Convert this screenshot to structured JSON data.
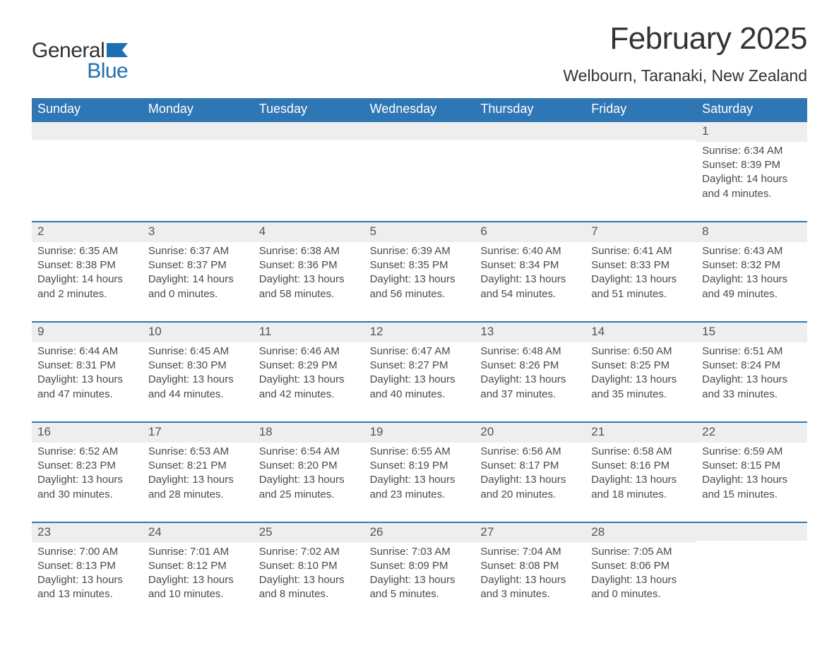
{
  "logo": {
    "part1": "General",
    "part2": "Blue",
    "icon_color": "#1f6fb2"
  },
  "title": "February 2025",
  "location": "Welbourn, Taranaki, New Zealand",
  "colors": {
    "header_bg": "#2f76b5",
    "header_text": "#ffffff",
    "daynum_bg": "#eeeeee",
    "row_border": "#2f76b5",
    "body_text": "#4a4a4a",
    "logo_blue": "#1f6fb2",
    "background": "#ffffff"
  },
  "layout": {
    "columns": 7,
    "rows": 5,
    "cell_font_size": 15,
    "header_font_size": 18,
    "title_font_size": 44,
    "location_font_size": 23
  },
  "weekdays": [
    "Sunday",
    "Monday",
    "Tuesday",
    "Wednesday",
    "Thursday",
    "Friday",
    "Saturday"
  ],
  "weeks": [
    [
      null,
      null,
      null,
      null,
      null,
      null,
      {
        "day": "1",
        "sunrise": "Sunrise: 6:34 AM",
        "sunset": "Sunset: 8:39 PM",
        "daylight": "Daylight: 14 hours and 4 minutes."
      }
    ],
    [
      {
        "day": "2",
        "sunrise": "Sunrise: 6:35 AM",
        "sunset": "Sunset: 8:38 PM",
        "daylight": "Daylight: 14 hours and 2 minutes."
      },
      {
        "day": "3",
        "sunrise": "Sunrise: 6:37 AM",
        "sunset": "Sunset: 8:37 PM",
        "daylight": "Daylight: 14 hours and 0 minutes."
      },
      {
        "day": "4",
        "sunrise": "Sunrise: 6:38 AM",
        "sunset": "Sunset: 8:36 PM",
        "daylight": "Daylight: 13 hours and 58 minutes."
      },
      {
        "day": "5",
        "sunrise": "Sunrise: 6:39 AM",
        "sunset": "Sunset: 8:35 PM",
        "daylight": "Daylight: 13 hours and 56 minutes."
      },
      {
        "day": "6",
        "sunrise": "Sunrise: 6:40 AM",
        "sunset": "Sunset: 8:34 PM",
        "daylight": "Daylight: 13 hours and 54 minutes."
      },
      {
        "day": "7",
        "sunrise": "Sunrise: 6:41 AM",
        "sunset": "Sunset: 8:33 PM",
        "daylight": "Daylight: 13 hours and 51 minutes."
      },
      {
        "day": "8",
        "sunrise": "Sunrise: 6:43 AM",
        "sunset": "Sunset: 8:32 PM",
        "daylight": "Daylight: 13 hours and 49 minutes."
      }
    ],
    [
      {
        "day": "9",
        "sunrise": "Sunrise: 6:44 AM",
        "sunset": "Sunset: 8:31 PM",
        "daylight": "Daylight: 13 hours and 47 minutes."
      },
      {
        "day": "10",
        "sunrise": "Sunrise: 6:45 AM",
        "sunset": "Sunset: 8:30 PM",
        "daylight": "Daylight: 13 hours and 44 minutes."
      },
      {
        "day": "11",
        "sunrise": "Sunrise: 6:46 AM",
        "sunset": "Sunset: 8:29 PM",
        "daylight": "Daylight: 13 hours and 42 minutes."
      },
      {
        "day": "12",
        "sunrise": "Sunrise: 6:47 AM",
        "sunset": "Sunset: 8:27 PM",
        "daylight": "Daylight: 13 hours and 40 minutes."
      },
      {
        "day": "13",
        "sunrise": "Sunrise: 6:48 AM",
        "sunset": "Sunset: 8:26 PM",
        "daylight": "Daylight: 13 hours and 37 minutes."
      },
      {
        "day": "14",
        "sunrise": "Sunrise: 6:50 AM",
        "sunset": "Sunset: 8:25 PM",
        "daylight": "Daylight: 13 hours and 35 minutes."
      },
      {
        "day": "15",
        "sunrise": "Sunrise: 6:51 AM",
        "sunset": "Sunset: 8:24 PM",
        "daylight": "Daylight: 13 hours and 33 minutes."
      }
    ],
    [
      {
        "day": "16",
        "sunrise": "Sunrise: 6:52 AM",
        "sunset": "Sunset: 8:23 PM",
        "daylight": "Daylight: 13 hours and 30 minutes."
      },
      {
        "day": "17",
        "sunrise": "Sunrise: 6:53 AM",
        "sunset": "Sunset: 8:21 PM",
        "daylight": "Daylight: 13 hours and 28 minutes."
      },
      {
        "day": "18",
        "sunrise": "Sunrise: 6:54 AM",
        "sunset": "Sunset: 8:20 PM",
        "daylight": "Daylight: 13 hours and 25 minutes."
      },
      {
        "day": "19",
        "sunrise": "Sunrise: 6:55 AM",
        "sunset": "Sunset: 8:19 PM",
        "daylight": "Daylight: 13 hours and 23 minutes."
      },
      {
        "day": "20",
        "sunrise": "Sunrise: 6:56 AM",
        "sunset": "Sunset: 8:17 PM",
        "daylight": "Daylight: 13 hours and 20 minutes."
      },
      {
        "day": "21",
        "sunrise": "Sunrise: 6:58 AM",
        "sunset": "Sunset: 8:16 PM",
        "daylight": "Daylight: 13 hours and 18 minutes."
      },
      {
        "day": "22",
        "sunrise": "Sunrise: 6:59 AM",
        "sunset": "Sunset: 8:15 PM",
        "daylight": "Daylight: 13 hours and 15 minutes."
      }
    ],
    [
      {
        "day": "23",
        "sunrise": "Sunrise: 7:00 AM",
        "sunset": "Sunset: 8:13 PM",
        "daylight": "Daylight: 13 hours and 13 minutes."
      },
      {
        "day": "24",
        "sunrise": "Sunrise: 7:01 AM",
        "sunset": "Sunset: 8:12 PM",
        "daylight": "Daylight: 13 hours and 10 minutes."
      },
      {
        "day": "25",
        "sunrise": "Sunrise: 7:02 AM",
        "sunset": "Sunset: 8:10 PM",
        "daylight": "Daylight: 13 hours and 8 minutes."
      },
      {
        "day": "26",
        "sunrise": "Sunrise: 7:03 AM",
        "sunset": "Sunset: 8:09 PM",
        "daylight": "Daylight: 13 hours and 5 minutes."
      },
      {
        "day": "27",
        "sunrise": "Sunrise: 7:04 AM",
        "sunset": "Sunset: 8:08 PM",
        "daylight": "Daylight: 13 hours and 3 minutes."
      },
      {
        "day": "28",
        "sunrise": "Sunrise: 7:05 AM",
        "sunset": "Sunset: 8:06 PM",
        "daylight": "Daylight: 13 hours and 0 minutes."
      },
      null
    ]
  ]
}
